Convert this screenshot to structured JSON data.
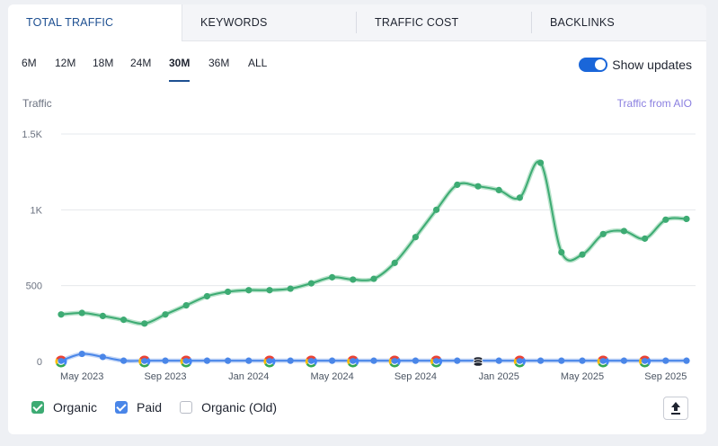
{
  "tabs": [
    {
      "label": "Total Traffic",
      "active": true
    },
    {
      "label": "Keywords",
      "active": false
    },
    {
      "label": "Traffic Cost",
      "active": false
    },
    {
      "label": "Backlinks",
      "active": false
    }
  ],
  "periods": [
    {
      "label": "6M",
      "active": false
    },
    {
      "label": "12M",
      "active": false
    },
    {
      "label": "18M",
      "active": false
    },
    {
      "label": "24M",
      "active": false
    },
    {
      "label": "30M",
      "active": true
    },
    {
      "label": "36M",
      "active": false
    },
    {
      "label": "ALL",
      "active": false
    }
  ],
  "toggle": {
    "label": "Show updates",
    "on": true
  },
  "aio_link": "Traffic from AIO",
  "legend": [
    {
      "label": "Organic",
      "checked": true,
      "color": "#3dab73"
    },
    {
      "label": "Paid",
      "checked": true,
      "color": "#4a86e8"
    },
    {
      "label": "Organic (Old)",
      "checked": false,
      "color": "#b8bcc6"
    }
  ],
  "export_icon": "upload-icon",
  "chart_data": {
    "type": "line",
    "ylabel": "Traffic",
    "ylim": [
      0,
      1500
    ],
    "yticks": [
      {
        "value": 0,
        "label": "0"
      },
      {
        "value": 500,
        "label": "500"
      },
      {
        "value": 1000,
        "label": "1K"
      },
      {
        "value": 1500,
        "label": "1.5K"
      }
    ],
    "xticks": [
      {
        "index": 1,
        "label": "May 2023"
      },
      {
        "index": 5,
        "label": "Sep 2023"
      },
      {
        "index": 9,
        "label": "Jan 2024"
      },
      {
        "index": 13,
        "label": "May 2024"
      },
      {
        "index": 17,
        "label": "Sep 2024"
      },
      {
        "index": 21,
        "label": "Jan 2025"
      },
      {
        "index": 25,
        "label": "May 2025"
      },
      {
        "index": 29,
        "label": "Sep 2025"
      }
    ],
    "x": [
      "Apr 2023",
      "May 2023",
      "Jun 2023",
      "Jul 2023",
      "Aug 2023",
      "Sep 2023",
      "Oct 2023",
      "Nov 2023",
      "Dec 2023",
      "Jan 2024",
      "Feb 2024",
      "Mar 2024",
      "Apr 2024",
      "May 2024",
      "Jun 2024",
      "Jul 2024",
      "Aug 2024",
      "Sep 2024",
      "Oct 2024",
      "Nov 2024",
      "Dec 2024",
      "Jan 2025",
      "Feb 2025",
      "Mar 2025",
      "Apr 2025",
      "May 2025",
      "Jun 2025",
      "Jul 2025",
      "Aug 2025",
      "Sep 2025",
      "Oct 2025"
    ],
    "series": [
      {
        "name": "Organic",
        "color": "#3dab73",
        "values": [
          310,
          320,
          300,
          275,
          250,
          310,
          370,
          430,
          460,
          470,
          470,
          480,
          515,
          555,
          540,
          545,
          650,
          820,
          1000,
          1165,
          1155,
          1130,
          1080,
          1310,
          720,
          705,
          840,
          860,
          810,
          935,
          940
        ]
      },
      {
        "name": "Paid",
        "color": "#4a86e8",
        "values": [
          5,
          50,
          30,
          5,
          5,
          5,
          5,
          5,
          5,
          5,
          5,
          5,
          5,
          5,
          5,
          5,
          5,
          5,
          5,
          5,
          5,
          5,
          5,
          5,
          5,
          5,
          5,
          5,
          5,
          5,
          5
        ]
      }
    ],
    "update_markers": [
      {
        "index": 0,
        "icon": "google-icon"
      },
      {
        "index": 4,
        "icon": "google-icon"
      },
      {
        "index": 6,
        "icon": "google-icon"
      },
      {
        "index": 10,
        "icon": "google-icon"
      },
      {
        "index": 12,
        "icon": "google-icon"
      },
      {
        "index": 14,
        "icon": "google-icon"
      },
      {
        "index": 16,
        "icon": "google-icon"
      },
      {
        "index": 18,
        "icon": "google-icon"
      },
      {
        "index": 20,
        "icon": "database-icon"
      },
      {
        "index": 22,
        "icon": "google-icon"
      },
      {
        "index": 26,
        "icon": "google-icon"
      },
      {
        "index": 28,
        "icon": "google-icon"
      }
    ],
    "grid": true
  }
}
